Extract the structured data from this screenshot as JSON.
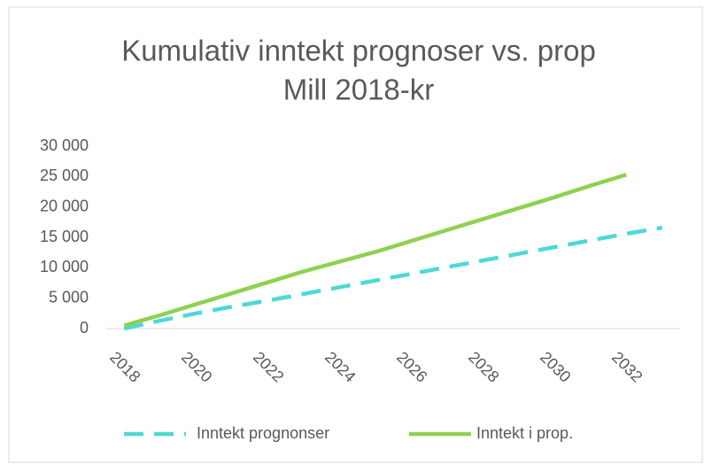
{
  "chart_data": {
    "type": "line",
    "title": [
      "Kumulativ inntekt prognoser vs. prop",
      "Mill 2018-kr"
    ],
    "x": [
      2018,
      2019,
      2020,
      2021,
      2022,
      2023,
      2024,
      2025,
      2026,
      2027,
      2028,
      2029,
      2030,
      2031,
      2032,
      2033
    ],
    "xlim": [
      2017.5,
      2033.5
    ],
    "xticks": [
      2018,
      2020,
      2022,
      2024,
      2026,
      2028,
      2030,
      2032
    ],
    "ylim": [
      0,
      30000
    ],
    "yticks": [
      {
        "value": 0,
        "label": "0"
      },
      {
        "value": 5000,
        "label": "5 000"
      },
      {
        "value": 10000,
        "label": "10 000"
      },
      {
        "value": 15000,
        "label": "15 000"
      },
      {
        "value": 20000,
        "label": "20 000"
      },
      {
        "value": 25000,
        "label": "25 000"
      },
      {
        "value": 30000,
        "label": "30 000"
      }
    ],
    "grid": false,
    "legend": "bottom",
    "series": [
      {
        "name": "Inntekt prognonser",
        "color": "#4dd9d6",
        "dashed": true,
        "values": [
          0,
          1300,
          2500,
          3600,
          4600,
          5700,
          6800,
          7900,
          9000,
          10100,
          11200,
          12300,
          13400,
          14500,
          15600,
          16600
        ]
      },
      {
        "name": "Inntekt i prop.",
        "color": "#8fd14f",
        "dashed": false,
        "values": [
          500,
          2200,
          4000,
          5800,
          7600,
          9400,
          11000,
          12600,
          14400,
          16200,
          18000,
          19800,
          21600,
          23500,
          25300,
          null
        ]
      }
    ]
  }
}
